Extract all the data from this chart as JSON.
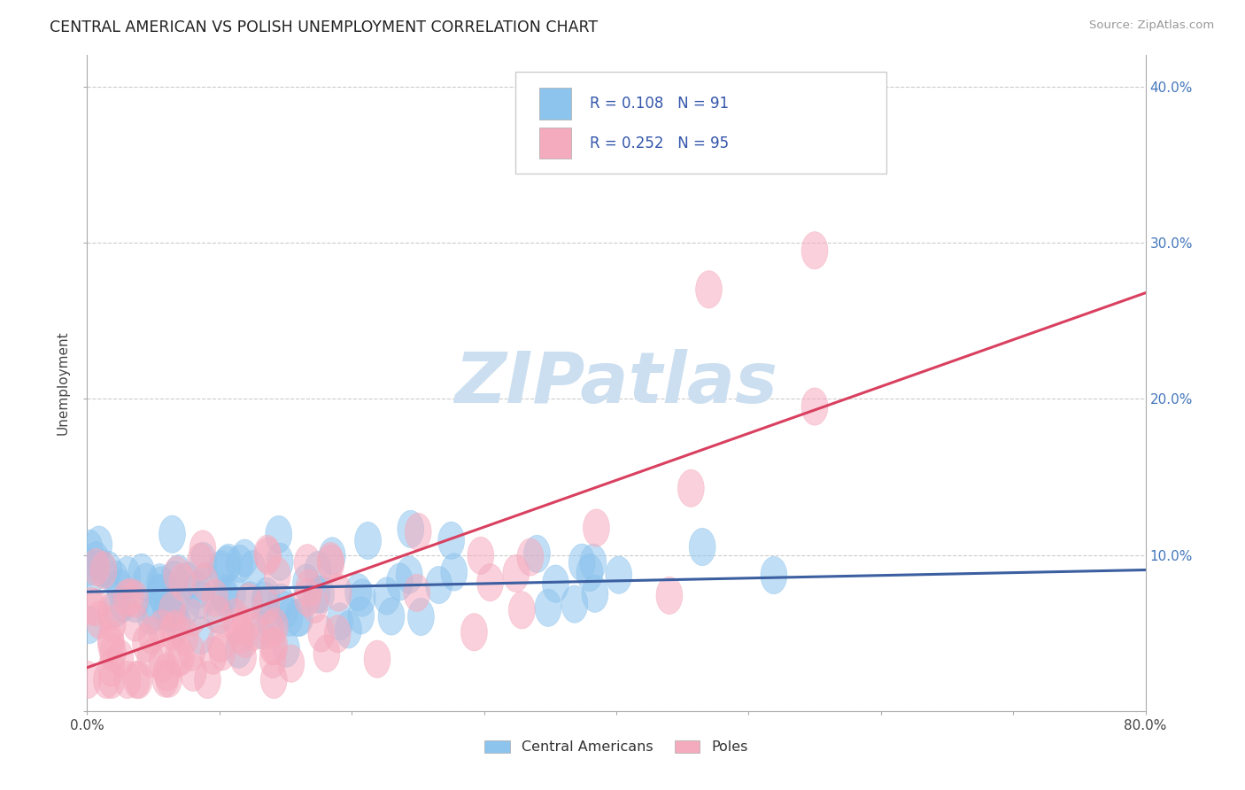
{
  "title": "CENTRAL AMERICAN VS POLISH UNEMPLOYMENT CORRELATION CHART",
  "source": "Source: ZipAtlas.com",
  "ylabel": "Unemployment",
  "xlim": [
    0.0,
    0.8
  ],
  "ylim": [
    0.0,
    0.42
  ],
  "blue_color": "#8DC4EE",
  "pink_color": "#F5ABBE",
  "blue_line_color": "#3B5FA0",
  "pink_line_color": "#D94060",
  "blue_R": 0.108,
  "blue_N": 91,
  "pink_R": 0.252,
  "pink_N": 95,
  "watermark": "ZIPatlas",
  "watermark_color": "#CCDFF0",
  "right_tick_color": "#4477BB",
  "grid_color": "#CCCCCC",
  "legend_text_color": "#3355AA"
}
